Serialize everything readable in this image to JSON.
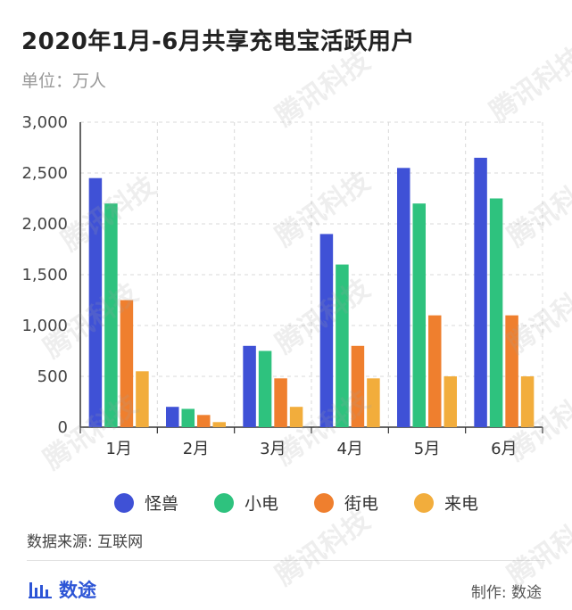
{
  "header": {
    "title": "2020年1月-6月共享充电宝活跃用户",
    "unit": "单位：万人"
  },
  "footer": {
    "source": "数据来源: 互联网",
    "brand": "数途",
    "credit": "制作: 数途"
  },
  "watermark": "腾讯科技",
  "chart_data": {
    "type": "bar",
    "title": "2020年1月-6月共享充电宝活跃用户",
    "categories": [
      "1月",
      "2月",
      "3月",
      "4月",
      "5月",
      "6月"
    ],
    "series": [
      {
        "name": "怪兽",
        "color": "#3f51d6",
        "values": [
          2450,
          200,
          800,
          1900,
          2550,
          2650
        ]
      },
      {
        "name": "小电",
        "color": "#2ec27e",
        "values": [
          2200,
          180,
          750,
          1600,
          2200,
          2250
        ]
      },
      {
        "name": "街电",
        "color": "#ef7f2e",
        "values": [
          1250,
          120,
          480,
          800,
          1100,
          1100
        ]
      },
      {
        "name": "来电",
        "color": "#f2ad3c",
        "values": [
          550,
          50,
          200,
          480,
          500,
          500
        ]
      }
    ],
    "ylim": [
      0,
      3000
    ],
    "yticks": [
      0,
      500,
      1000,
      1500,
      2000,
      2500,
      3000
    ],
    "ytick_labels": [
      "0",
      "500",
      "1,000",
      "1,500",
      "2,000",
      "2,500",
      "3,000"
    ],
    "grid": true,
    "legend_position": "bottom"
  }
}
